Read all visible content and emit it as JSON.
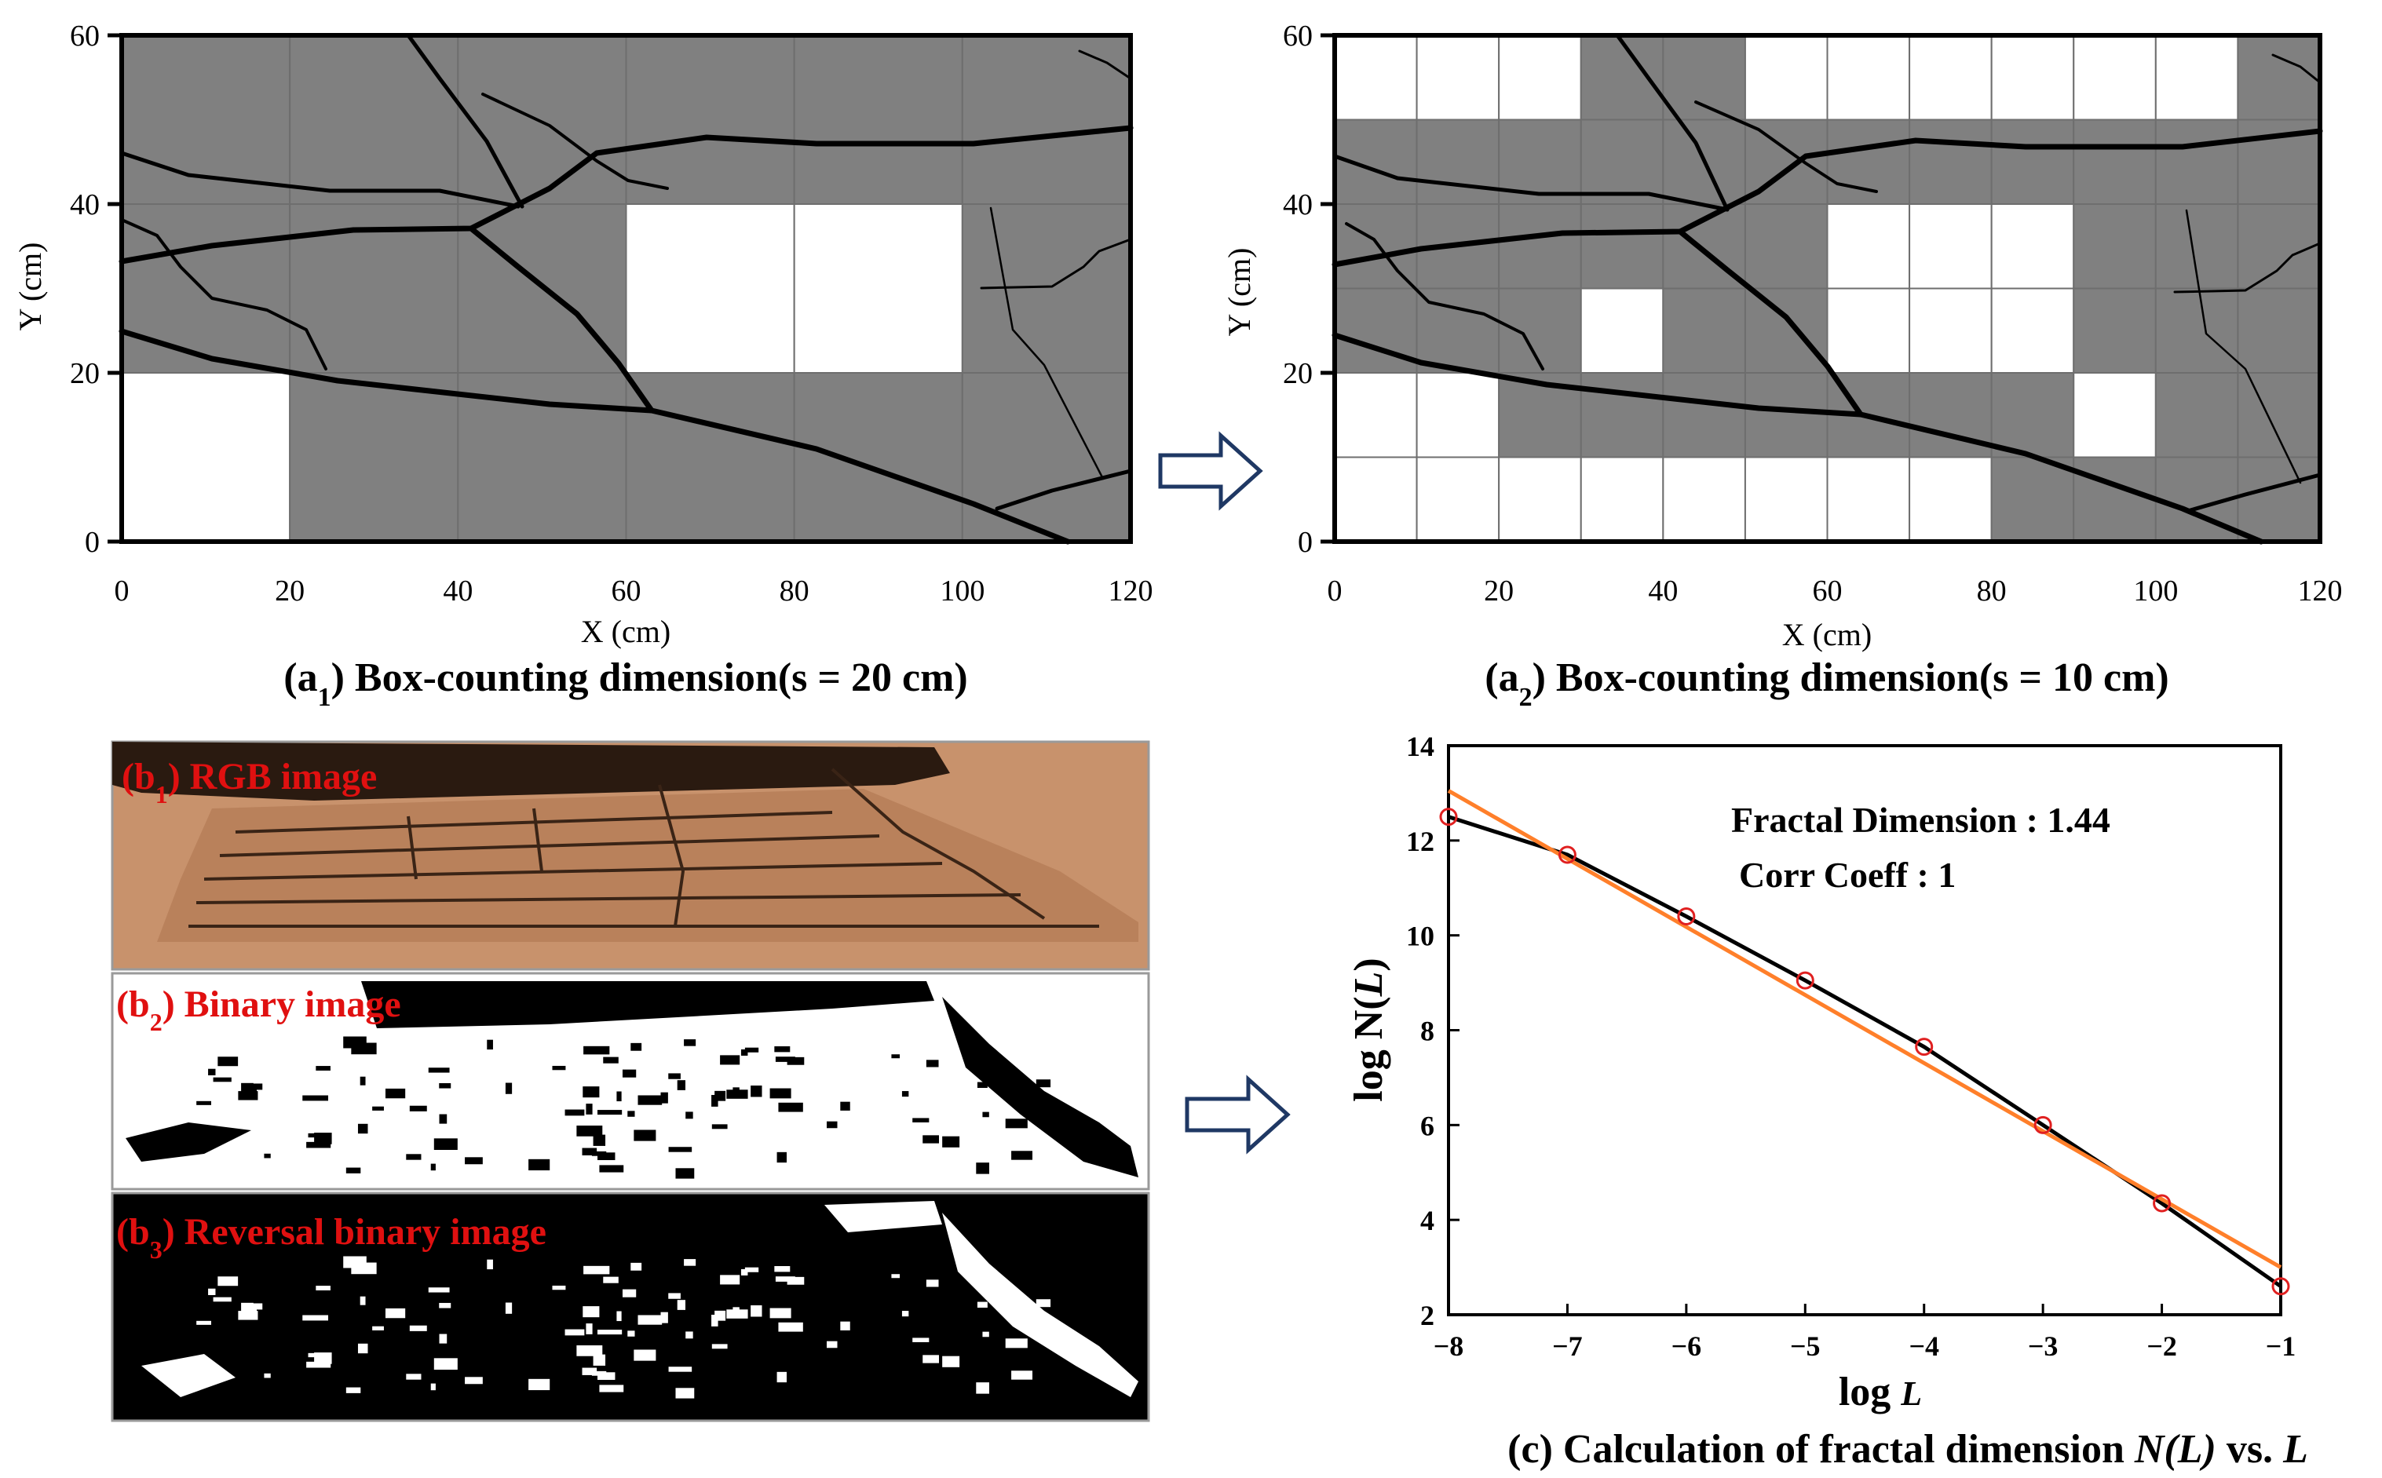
{
  "panel_a1": {
    "caption_prefix": "(a",
    "caption_sub": "1",
    "caption_rest": ") Box-counting dimension(s = 20 cm)",
    "xlabel": "X (cm)",
    "ylabel": "Y (cm)",
    "xticks": [
      "0",
      "20",
      "40",
      "60",
      "80",
      "100",
      "120"
    ],
    "yticks": [
      "0",
      "20",
      "40",
      "60"
    ],
    "box_size": 20,
    "grid_color": "#808080",
    "empty_boxes": [
      [
        0,
        0
      ],
      [
        3,
        1
      ],
      [
        4,
        1
      ]
    ]
  },
  "panel_a2": {
    "caption_prefix": "(a",
    "caption_sub": "2",
    "caption_rest": ") Box-counting dimension(s = 10 cm)",
    "xlabel": "X (cm)",
    "ylabel": "Y (cm)",
    "xticks": [
      "0",
      "20",
      "40",
      "60",
      "80",
      "100",
      "120"
    ],
    "yticks": [
      "0",
      "20",
      "40",
      "60"
    ],
    "box_size": 10,
    "grid_color": "#808080",
    "empty_boxes": [
      [
        0,
        0
      ],
      [
        1,
        0
      ],
      [
        2,
        0
      ],
      [
        3,
        0
      ],
      [
        4,
        0
      ],
      [
        5,
        0
      ],
      [
        6,
        0
      ],
      [
        7,
        0
      ],
      [
        0,
        1
      ],
      [
        1,
        1
      ],
      [
        9,
        1
      ],
      [
        3,
        2
      ],
      [
        6,
        2
      ],
      [
        7,
        2
      ],
      [
        8,
        2
      ],
      [
        6,
        3
      ],
      [
        7,
        3
      ],
      [
        8,
        3
      ],
      [
        0,
        5
      ],
      [
        1,
        5
      ],
      [
        2,
        5
      ],
      [
        5,
        5
      ],
      [
        6,
        5
      ],
      [
        7,
        5
      ],
      [
        8,
        5
      ],
      [
        9,
        5
      ],
      [
        10,
        5
      ]
    ]
  },
  "panel_b": {
    "b1_prefix": "(b",
    "b1_sub": "1",
    "b1_rest": ") RGB image",
    "b2_prefix": "(b",
    "b2_sub": "2",
    "b2_rest": ") Binary image",
    "b3_prefix": "(b",
    "b3_sub": "3",
    "b3_rest": ") Reversal binary image",
    "label_color": "#e01010",
    "rgb_color": "#c8926c"
  },
  "chart_data": {
    "type": "line",
    "title": "(c) Calculation of fractal dimension N(L) vs. L",
    "caption_plain": "(c) Calculation of fractal dimension ",
    "caption_italic": "N(L)",
    "caption_mid": " vs. ",
    "caption_italic2": "L",
    "xlabel": "log L",
    "ylabel": "log N(L)",
    "xlim": [
      -8,
      -1
    ],
    "ylim": [
      2,
      14
    ],
    "xticks": [
      "−8",
      "−7",
      "−6",
      "−5",
      "−4",
      "−3",
      "−2",
      "−1"
    ],
    "yticks": [
      "2",
      "4",
      "6",
      "8",
      "10",
      "12",
      "14"
    ],
    "annotations": [
      "Fractal Dimension : 1.44",
      "Corr Coeff : 1"
    ],
    "series": [
      {
        "x": [
          -8,
          -7,
          -6,
          -5,
          -4,
          -3,
          -2,
          -1
        ],
        "y": [
          12.5,
          11.7,
          10.4,
          9.05,
          7.65,
          6.0,
          4.35,
          2.6
        ],
        "color": "#000000",
        "marker_color": "#e02020"
      },
      {
        "x": [
          -8,
          -1
        ],
        "y": [
          13.05,
          3.0
        ],
        "color": "#ff7f2a"
      }
    ]
  }
}
